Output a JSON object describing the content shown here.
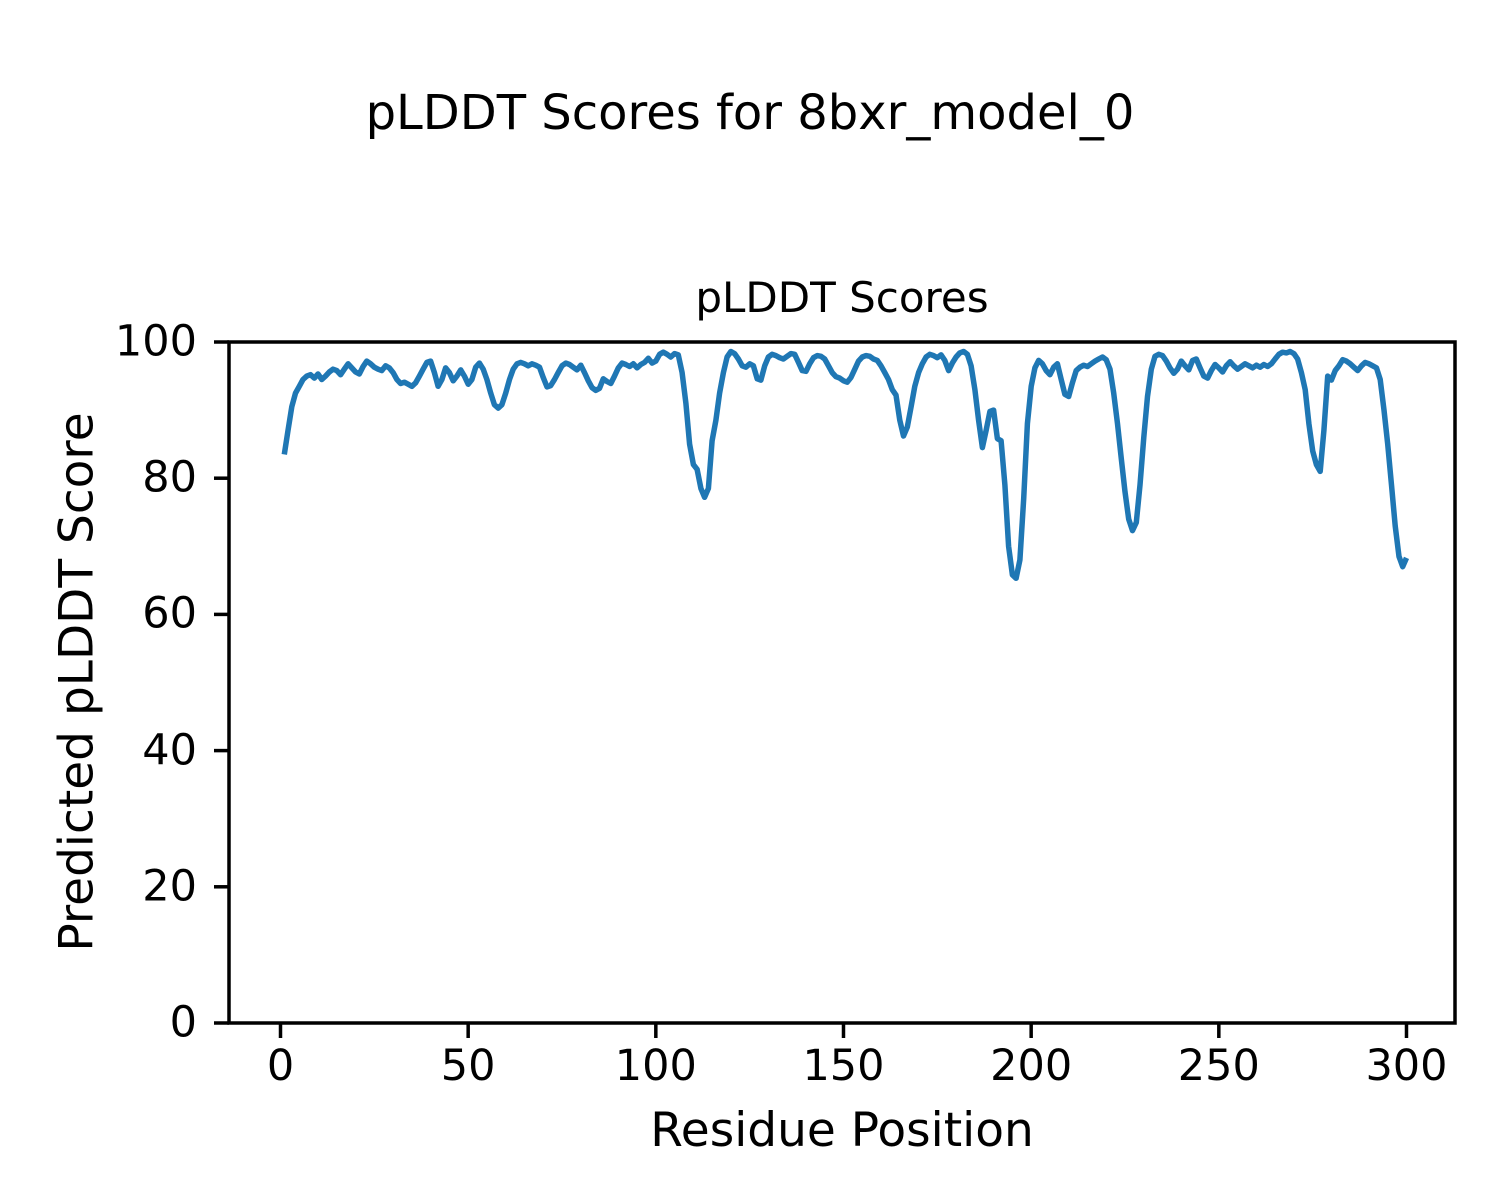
{
  "figure": {
    "suptitle": "pLDDT Scores for 8bxr_model_0"
  },
  "chart_data": {
    "type": "line",
    "title": "pLDDT Scores",
    "xlabel": "Residue Position",
    "ylabel": "Predicted pLDDT Score",
    "xlim": [
      -15,
      315
    ],
    "ylim": [
      0,
      100
    ],
    "xticks": [
      0,
      50,
      100,
      150,
      200,
      250,
      300
    ],
    "yticks": [
      0,
      20,
      40,
      60,
      80,
      100
    ],
    "grid": false,
    "legend_position": "none",
    "line_color": "#1f77b4",
    "axis_color": "#000000",
    "series": [
      {
        "name": "pLDDT",
        "x_start": 1,
        "x_step": 1,
        "y": [
          83.5,
          87,
          90.5,
          92.5,
          93.5,
          94.5,
          95,
          95.2,
          94.7,
          95.3,
          94.5,
          95,
          95.6,
          96,
          95.8,
          95.2,
          96,
          96.8,
          96.2,
          95.6,
          95.3,
          96.4,
          97.2,
          96.8,
          96.3,
          96,
          95.8,
          96.5,
          96.2,
          95.5,
          94.5,
          93.9,
          94.1,
          93.8,
          93.5,
          94,
          95,
          96,
          97,
          97.2,
          95.5,
          93.5,
          94.5,
          96.2,
          95.5,
          94.3,
          95,
          95.9,
          95,
          93.8,
          94.5,
          96.3,
          96.9,
          96,
          94.5,
          92.5,
          90.8,
          90.3,
          90.8,
          92.5,
          94.5,
          96,
          96.8,
          97,
          96.8,
          96.5,
          96.8,
          96.6,
          96.3,
          94.8,
          93.4,
          93.6,
          94.5,
          95.5,
          96.5,
          96.9,
          96.7,
          96.3,
          95.9,
          96.6,
          95.5,
          94.3,
          93.3,
          92.9,
          93.2,
          94.6,
          94.2,
          93.9,
          95,
          96.2,
          96.9,
          96.7,
          96.4,
          96.8,
          96.2,
          96.7,
          97,
          97.6,
          96.9,
          97.2,
          98.2,
          98.5,
          98.2,
          97.8,
          98.3,
          98.1,
          95.5,
          91,
          85,
          82,
          81.3,
          78.5,
          77.2,
          78.5,
          85.5,
          88.5,
          92.5,
          95.5,
          97.8,
          98.6,
          98.3,
          97.5,
          96.5,
          96.3,
          96.8,
          96.5,
          94.6,
          94.4,
          96.5,
          97.8,
          98.2,
          98,
          97.7,
          97.5,
          97.9,
          98.3,
          98.2,
          97,
          95.8,
          95.7,
          96.8,
          97.7,
          98,
          97.9,
          97.5,
          96.5,
          95.5,
          94.9,
          94.7,
          94.3,
          94.1,
          94.8,
          96,
          97.2,
          97.8,
          98,
          97.9,
          97.5,
          97.3,
          96.5,
          95.5,
          94.5,
          93,
          92.2,
          88.5,
          86.2,
          87.5,
          90.5,
          93.5,
          95.5,
          96.8,
          97.8,
          98.2,
          98,
          97.7,
          98.1,
          97.3,
          95.8,
          96.9,
          97.8,
          98.4,
          98.6,
          98.2,
          96.5,
          93,
          88.5,
          84.5,
          87,
          89.8,
          90,
          85.8,
          85.5,
          79,
          70,
          65.8,
          65.3,
          68,
          77,
          88,
          93.5,
          96.2,
          97.3,
          96.8,
          95.8,
          95.2,
          96.3,
          96.8,
          94.5,
          92.3,
          92,
          94,
          95.8,
          96.3,
          96.6,
          96.4,
          96.8,
          97.2,
          97.5,
          97.8,
          97.4,
          96,
          92.5,
          88,
          83,
          78,
          74,
          72.3,
          73.5,
          79,
          86,
          92,
          96,
          97.9,
          98.2,
          98,
          97.2,
          96.2,
          95.4,
          96,
          97.2,
          96.5,
          95.9,
          97.3,
          97.5,
          96.2,
          95,
          94.7,
          95.8,
          96.7,
          96.2,
          95.6,
          96.5,
          97.1,
          96.5,
          96,
          96.4,
          96.8,
          96.5,
          96.2,
          96.6,
          96.3,
          96.7,
          96.4,
          96.8,
          97.5,
          98.2,
          98.5,
          98.4,
          98.6,
          98.3,
          97.5,
          95.5,
          93,
          88,
          84,
          82,
          81,
          87,
          95,
          94.4,
          95.8,
          96.5,
          97.4,
          97.2,
          96.8,
          96.3,
          95.8,
          96.5,
          97,
          96.8,
          96.5,
          96.2,
          94.5,
          90,
          85,
          79,
          73,
          68.5,
          67,
          68.3
        ]
      }
    ]
  }
}
